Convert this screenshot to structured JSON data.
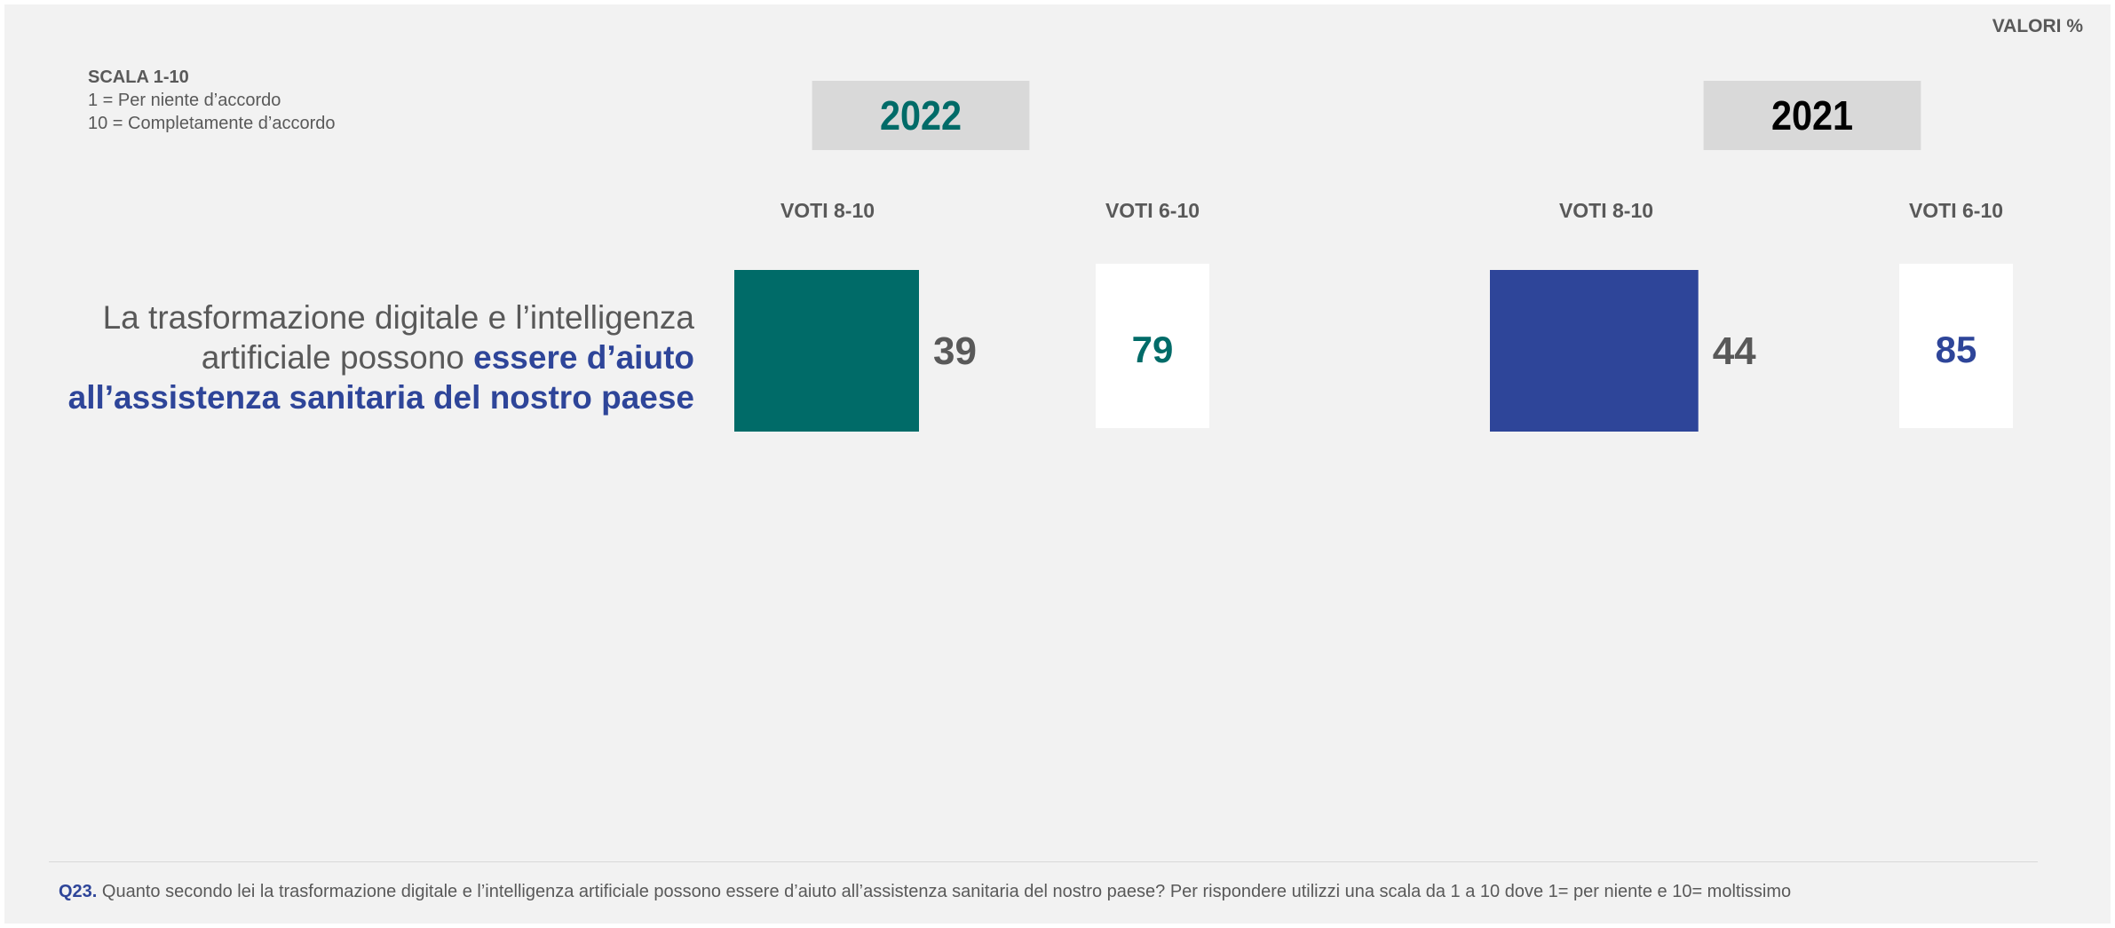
{
  "unit_label": "VALORI %",
  "scale": {
    "title": "SCALA 1-10",
    "line1": "1 = Per niente d’accordo",
    "line2": "10 = Completamente d’accordo"
  },
  "statement": {
    "plain": "La trasformazione digitale e l’intelligenza artificiale possono ",
    "highlight": "essere d’aiuto all’assistenza sanitaria del nostro paese"
  },
  "colors": {
    "y2022_accent": "#006b68",
    "y2021_accent": "#2e4599",
    "value_grey": "#595959",
    "year_box": "#d9d9d9"
  },
  "chart_data": {
    "type": "bar",
    "groups": [
      {
        "year": "2022",
        "voti_8_10_label": "VOTI 8-10",
        "voti_8_10": 39,
        "voti_6_10_label": "VOTI 6-10",
        "voti_6_10": 79
      },
      {
        "year": "2021",
        "voti_8_10_label": "VOTI 8-10",
        "voti_8_10": 44,
        "voti_6_10_label": "VOTI 6-10",
        "voti_6_10": 85
      }
    ]
  },
  "footnote": {
    "code": "Q23.",
    "text": " Quanto secondo lei la trasformazione digitale e l’intelligenza artificiale possono essere d’aiuto all’assistenza sanitaria del nostro paese? Per rispondere utilizzi una scala da 1 a 10 dove 1= per niente e 10= moltissimo"
  }
}
